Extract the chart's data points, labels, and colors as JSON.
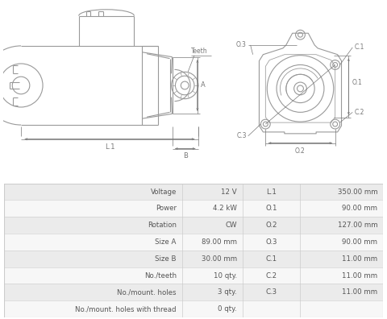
{
  "bg_color": "#ffffff",
  "table_bg_even": "#ebebeb",
  "table_bg_odd": "#f7f7f7",
  "table_border_color": "#cccccc",
  "drawing_color": "#999999",
  "dim_color": "#777777",
  "text_color": "#555555",
  "rows": [
    [
      "Voltage",
      "12 V",
      "L.1",
      "350.00 mm"
    ],
    [
      "Power",
      "4.2 kW",
      "O.1",
      "90.00 mm"
    ],
    [
      "Rotation",
      "CW",
      "O.2",
      "127.00 mm"
    ],
    [
      "Size A",
      "89.00 mm",
      "O.3",
      "90.00 mm"
    ],
    [
      "Size B",
      "30.00 mm",
      "C.1",
      "11.00 mm"
    ],
    [
      "No./teeth",
      "10 qty.",
      "C.2",
      "11.00 mm"
    ],
    [
      "No./mount. holes",
      "3 qty.",
      "C.3",
      "11.00 mm"
    ],
    [
      "No./mount. holes with thread",
      "0 qty.",
      "",
      ""
    ]
  ]
}
